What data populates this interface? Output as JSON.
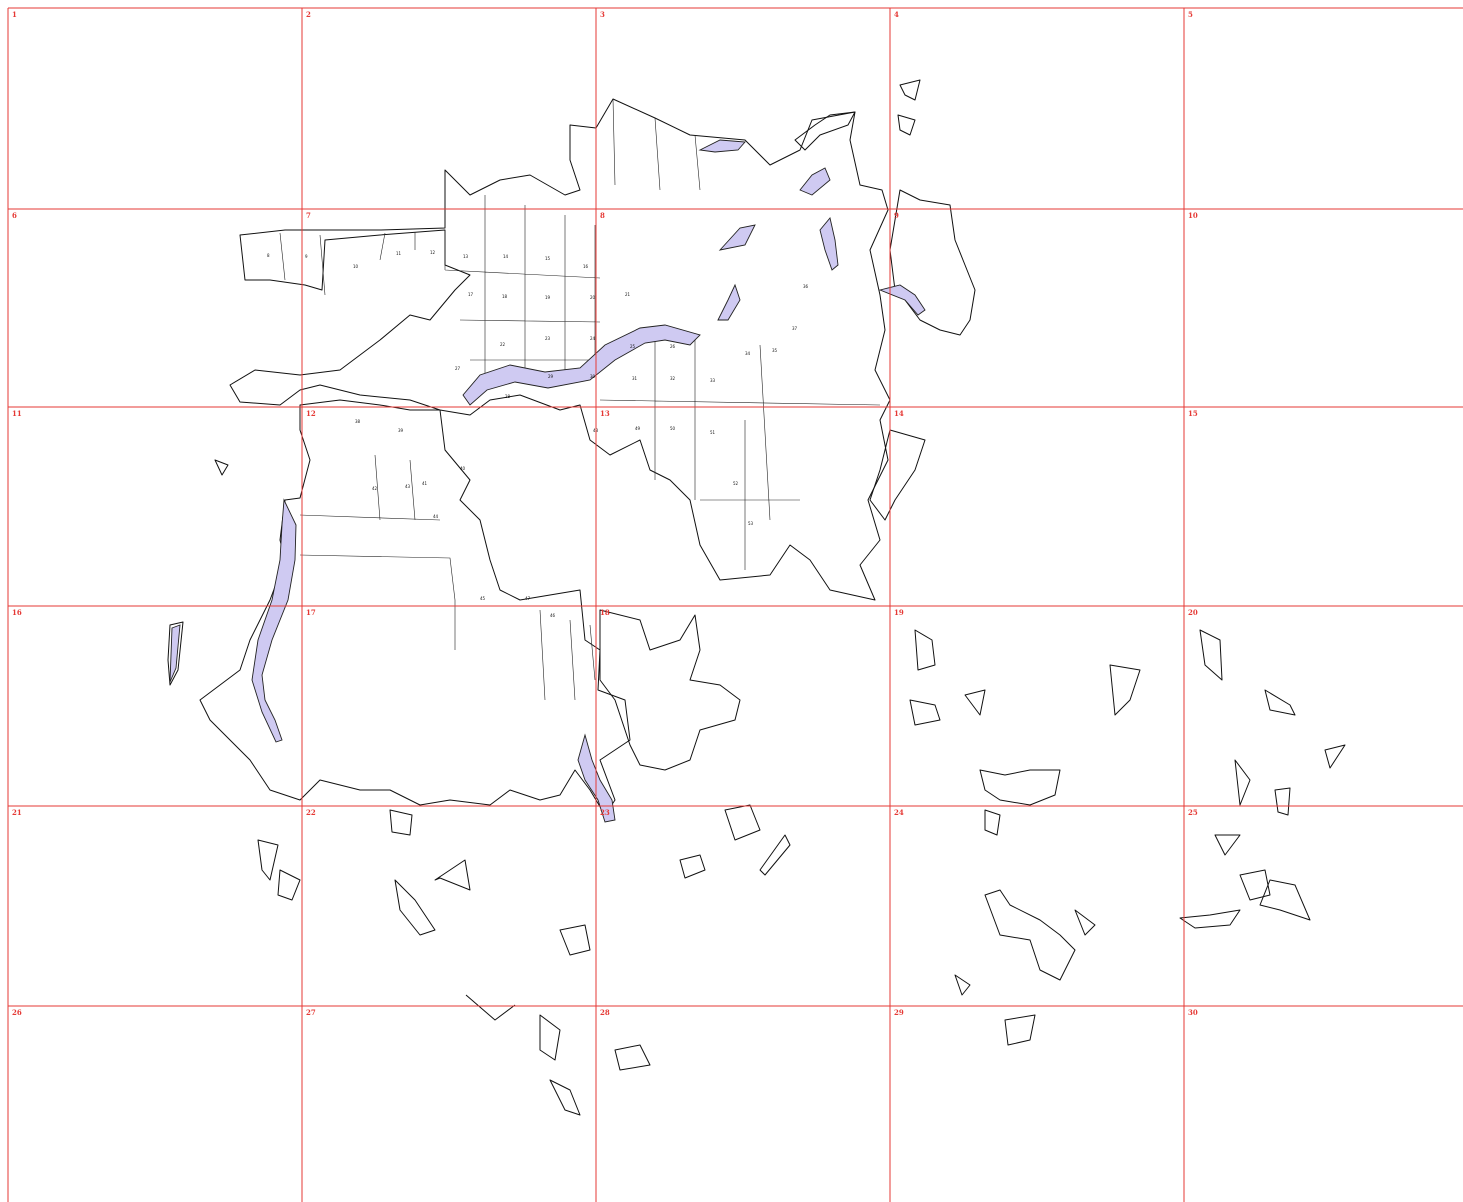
{
  "map": {
    "grid": {
      "cols": 5,
      "rows": 6,
      "cell_numbers": [
        "1",
        "2",
        "3",
        "4",
        "5",
        "6",
        "7",
        "8",
        "9",
        "10",
        "11",
        "12",
        "13",
        "14",
        "15",
        "16",
        "17",
        "18",
        "19",
        "20",
        "21",
        "22",
        "23",
        "24",
        "25",
        "26",
        "27",
        "28",
        "29",
        "30"
      ]
    },
    "colors": {
      "grid": "#e53935",
      "water": "#cfcaf2",
      "outline": "#111111",
      "background": "#ffffff"
    },
    "parcel_labels": [
      "8",
      "9",
      "10",
      "11",
      "12",
      "13",
      "14",
      "15",
      "16",
      "17",
      "18",
      "19",
      "20",
      "21",
      "22",
      "23",
      "24",
      "25",
      "26",
      "27",
      "28",
      "29",
      "30",
      "31",
      "32",
      "33",
      "34",
      "35",
      "36",
      "37",
      "38",
      "39",
      "40",
      "41",
      "42",
      "43",
      "44",
      "45",
      "46",
      "47",
      "48",
      "49",
      "50",
      "51",
      "52",
      "53"
    ]
  }
}
